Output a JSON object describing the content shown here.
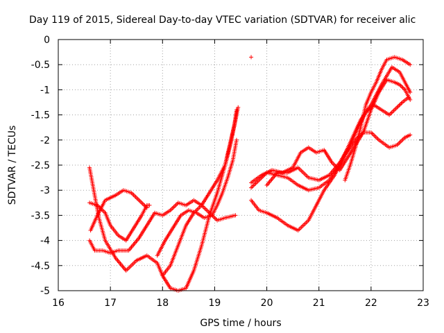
{
  "chart_data": {
    "type": "scatter",
    "title": "Day 119 of 2015, Sidereal Day-to-day VTEC variation (SDTVAR) for receiver alic",
    "xlabel": "GPS time / hours",
    "ylabel": "SDTVAR / TECUs",
    "xlim": [
      16,
      23
    ],
    "ylim": [
      -5,
      0
    ],
    "xticks": [
      "16",
      "17",
      "18",
      "19",
      "20",
      "21",
      "22",
      "23"
    ],
    "yticks": [
      "0",
      "-0.5",
      "-1",
      "-1.5",
      "-2",
      "-2.5",
      "-3",
      "-3.5",
      "-4",
      "-4.5",
      "-5"
    ],
    "grid": true,
    "legend": "none",
    "marker": "+",
    "color": "#ff0000",
    "series": [
      {
        "points": [
          [
            16.6,
            -2.55
          ],
          [
            16.68,
            -3.0
          ],
          [
            16.78,
            -3.55
          ],
          [
            16.9,
            -4.0
          ],
          [
            17.1,
            -4.35
          ],
          [
            17.3,
            -4.6
          ],
          [
            17.5,
            -4.4
          ],
          [
            17.7,
            -4.3
          ],
          [
            17.9,
            -4.45
          ],
          [
            18.0,
            -4.7
          ],
          [
            18.15,
            -4.95
          ],
          [
            18.3,
            -5.0
          ],
          [
            18.45,
            -4.95
          ],
          [
            18.6,
            -4.6
          ],
          [
            18.75,
            -4.1
          ],
          [
            18.9,
            -3.5
          ],
          [
            19.05,
            -3.05
          ],
          [
            19.2,
            -2.5
          ],
          [
            19.3,
            -2.05
          ],
          [
            19.4,
            -1.6
          ],
          [
            19.45,
            -1.35
          ]
        ]
      },
      {
        "points": [
          [
            16.6,
            -3.25
          ],
          [
            16.75,
            -3.3
          ],
          [
            16.9,
            -3.45
          ],
          [
            17.0,
            -3.7
          ],
          [
            17.15,
            -3.9
          ],
          [
            17.3,
            -4.0
          ],
          [
            17.45,
            -3.75
          ],
          [
            17.6,
            -3.5
          ],
          [
            17.7,
            -3.3
          ],
          [
            17.75,
            -3.3
          ]
        ]
      },
      {
        "points": [
          [
            16.6,
            -4.0
          ],
          [
            16.7,
            -4.2
          ],
          [
            16.85,
            -4.2
          ],
          [
            17.0,
            -4.25
          ],
          [
            17.15,
            -4.2
          ],
          [
            17.35,
            -4.2
          ],
          [
            17.55,
            -3.95
          ],
          [
            17.7,
            -3.7
          ],
          [
            17.85,
            -3.45
          ],
          [
            18.0,
            -3.5
          ],
          [
            18.15,
            -3.4
          ],
          [
            18.3,
            -3.25
          ],
          [
            18.45,
            -3.3
          ],
          [
            18.6,
            -3.2
          ],
          [
            18.75,
            -3.3
          ],
          [
            18.9,
            -3.45
          ],
          [
            19.05,
            -3.6
          ],
          [
            19.2,
            -3.55
          ],
          [
            19.4,
            -3.5
          ]
        ]
      },
      {
        "points": [
          [
            16.62,
            -3.8
          ],
          [
            16.75,
            -3.5
          ],
          [
            16.9,
            -3.2
          ],
          [
            17.1,
            -3.1
          ],
          [
            17.25,
            -3.0
          ],
          [
            17.4,
            -3.05
          ],
          [
            17.55,
            -3.2
          ],
          [
            17.7,
            -3.35
          ]
        ]
      },
      {
        "points": [
          [
            17.9,
            -4.3
          ],
          [
            18.05,
            -4.0
          ],
          [
            18.2,
            -3.75
          ],
          [
            18.35,
            -3.5
          ],
          [
            18.5,
            -3.4
          ],
          [
            18.65,
            -3.45
          ],
          [
            18.8,
            -3.55
          ],
          [
            18.95,
            -3.5
          ],
          [
            19.05,
            -3.3
          ],
          [
            19.15,
            -3.05
          ],
          [
            19.25,
            -2.75
          ],
          [
            19.35,
            -2.4
          ],
          [
            19.42,
            -2.0
          ]
        ]
      },
      {
        "points": [
          [
            18.0,
            -4.7
          ],
          [
            18.15,
            -4.5
          ],
          [
            18.3,
            -4.1
          ],
          [
            18.45,
            -3.7
          ],
          [
            18.6,
            -3.45
          ],
          [
            18.75,
            -3.3
          ],
          [
            18.9,
            -3.05
          ],
          [
            19.05,
            -2.8
          ],
          [
            19.2,
            -2.5
          ],
          [
            19.3,
            -2.1
          ],
          [
            19.38,
            -1.7
          ],
          [
            19.42,
            -1.4
          ]
        ]
      },
      {
        "points": [
          [
            19.7,
            -0.35
          ]
        ]
      },
      {
        "points": [
          [
            19.7,
            -3.2
          ],
          [
            19.85,
            -3.4
          ],
          [
            20.0,
            -3.45
          ],
          [
            20.2,
            -3.55
          ],
          [
            20.4,
            -3.7
          ],
          [
            20.6,
            -3.8
          ],
          [
            20.8,
            -3.6
          ],
          [
            20.95,
            -3.3
          ],
          [
            21.1,
            -3.0
          ],
          [
            21.3,
            -2.7
          ],
          [
            21.5,
            -2.3
          ],
          [
            21.7,
            -2.0
          ],
          [
            21.85,
            -1.85
          ],
          [
            22.0,
            -1.85
          ],
          [
            22.15,
            -2.0
          ],
          [
            22.35,
            -2.15
          ],
          [
            22.5,
            -2.1
          ],
          [
            22.65,
            -1.95
          ],
          [
            22.75,
            -1.9
          ]
        ]
      },
      {
        "points": [
          [
            19.7,
            -2.95
          ],
          [
            19.85,
            -2.8
          ],
          [
            20.0,
            -2.65
          ],
          [
            20.2,
            -2.7
          ],
          [
            20.4,
            -2.75
          ],
          [
            20.6,
            -2.9
          ],
          [
            20.8,
            -3.0
          ],
          [
            21.0,
            -2.95
          ],
          [
            21.2,
            -2.8
          ],
          [
            21.4,
            -2.5
          ],
          [
            21.6,
            -2.05
          ],
          [
            21.8,
            -1.6
          ],
          [
            22.0,
            -1.3
          ],
          [
            22.2,
            -0.9
          ],
          [
            22.4,
            -0.55
          ],
          [
            22.55,
            -0.65
          ],
          [
            22.7,
            -0.95
          ],
          [
            22.75,
            -1.05
          ]
        ]
      },
      {
        "points": [
          [
            19.7,
            -2.85
          ],
          [
            19.9,
            -2.7
          ],
          [
            20.1,
            -2.6
          ],
          [
            20.3,
            -2.65
          ],
          [
            20.5,
            -2.55
          ],
          [
            20.65,
            -2.25
          ],
          [
            20.8,
            -2.15
          ],
          [
            20.95,
            -2.25
          ],
          [
            21.1,
            -2.2
          ],
          [
            21.25,
            -2.45
          ],
          [
            21.4,
            -2.6
          ],
          [
            21.55,
            -2.35
          ],
          [
            21.7,
            -2.1
          ],
          [
            21.85,
            -1.85
          ],
          [
            22.0,
            -1.4
          ],
          [
            22.15,
            -1.05
          ],
          [
            22.3,
            -0.8
          ],
          [
            22.45,
            -0.85
          ],
          [
            22.55,
            -0.9
          ],
          [
            22.65,
            -1.0
          ],
          [
            22.75,
            -1.2
          ]
        ]
      },
      {
        "points": [
          [
            20.0,
            -2.9
          ],
          [
            20.2,
            -2.65
          ],
          [
            20.4,
            -2.65
          ],
          [
            20.6,
            -2.55
          ],
          [
            20.8,
            -2.75
          ],
          [
            21.0,
            -2.8
          ],
          [
            21.2,
            -2.7
          ],
          [
            21.4,
            -2.45
          ],
          [
            21.6,
            -2.1
          ],
          [
            21.75,
            -1.75
          ],
          [
            21.9,
            -1.45
          ],
          [
            22.05,
            -1.3
          ],
          [
            22.2,
            -1.4
          ],
          [
            22.35,
            -1.5
          ],
          [
            22.5,
            -1.35
          ],
          [
            22.6,
            -1.25
          ],
          [
            22.72,
            -1.15
          ]
        ]
      },
      {
        "points": [
          [
            21.5,
            -2.8
          ],
          [
            21.6,
            -2.5
          ],
          [
            21.7,
            -2.15
          ],
          [
            21.8,
            -1.75
          ],
          [
            21.9,
            -1.3
          ],
          [
            22.0,
            -1.05
          ],
          [
            22.1,
            -0.85
          ],
          [
            22.2,
            -0.6
          ],
          [
            22.3,
            -0.4
          ],
          [
            22.45,
            -0.35
          ],
          [
            22.6,
            -0.4
          ],
          [
            22.75,
            -0.5
          ]
        ]
      }
    ]
  }
}
